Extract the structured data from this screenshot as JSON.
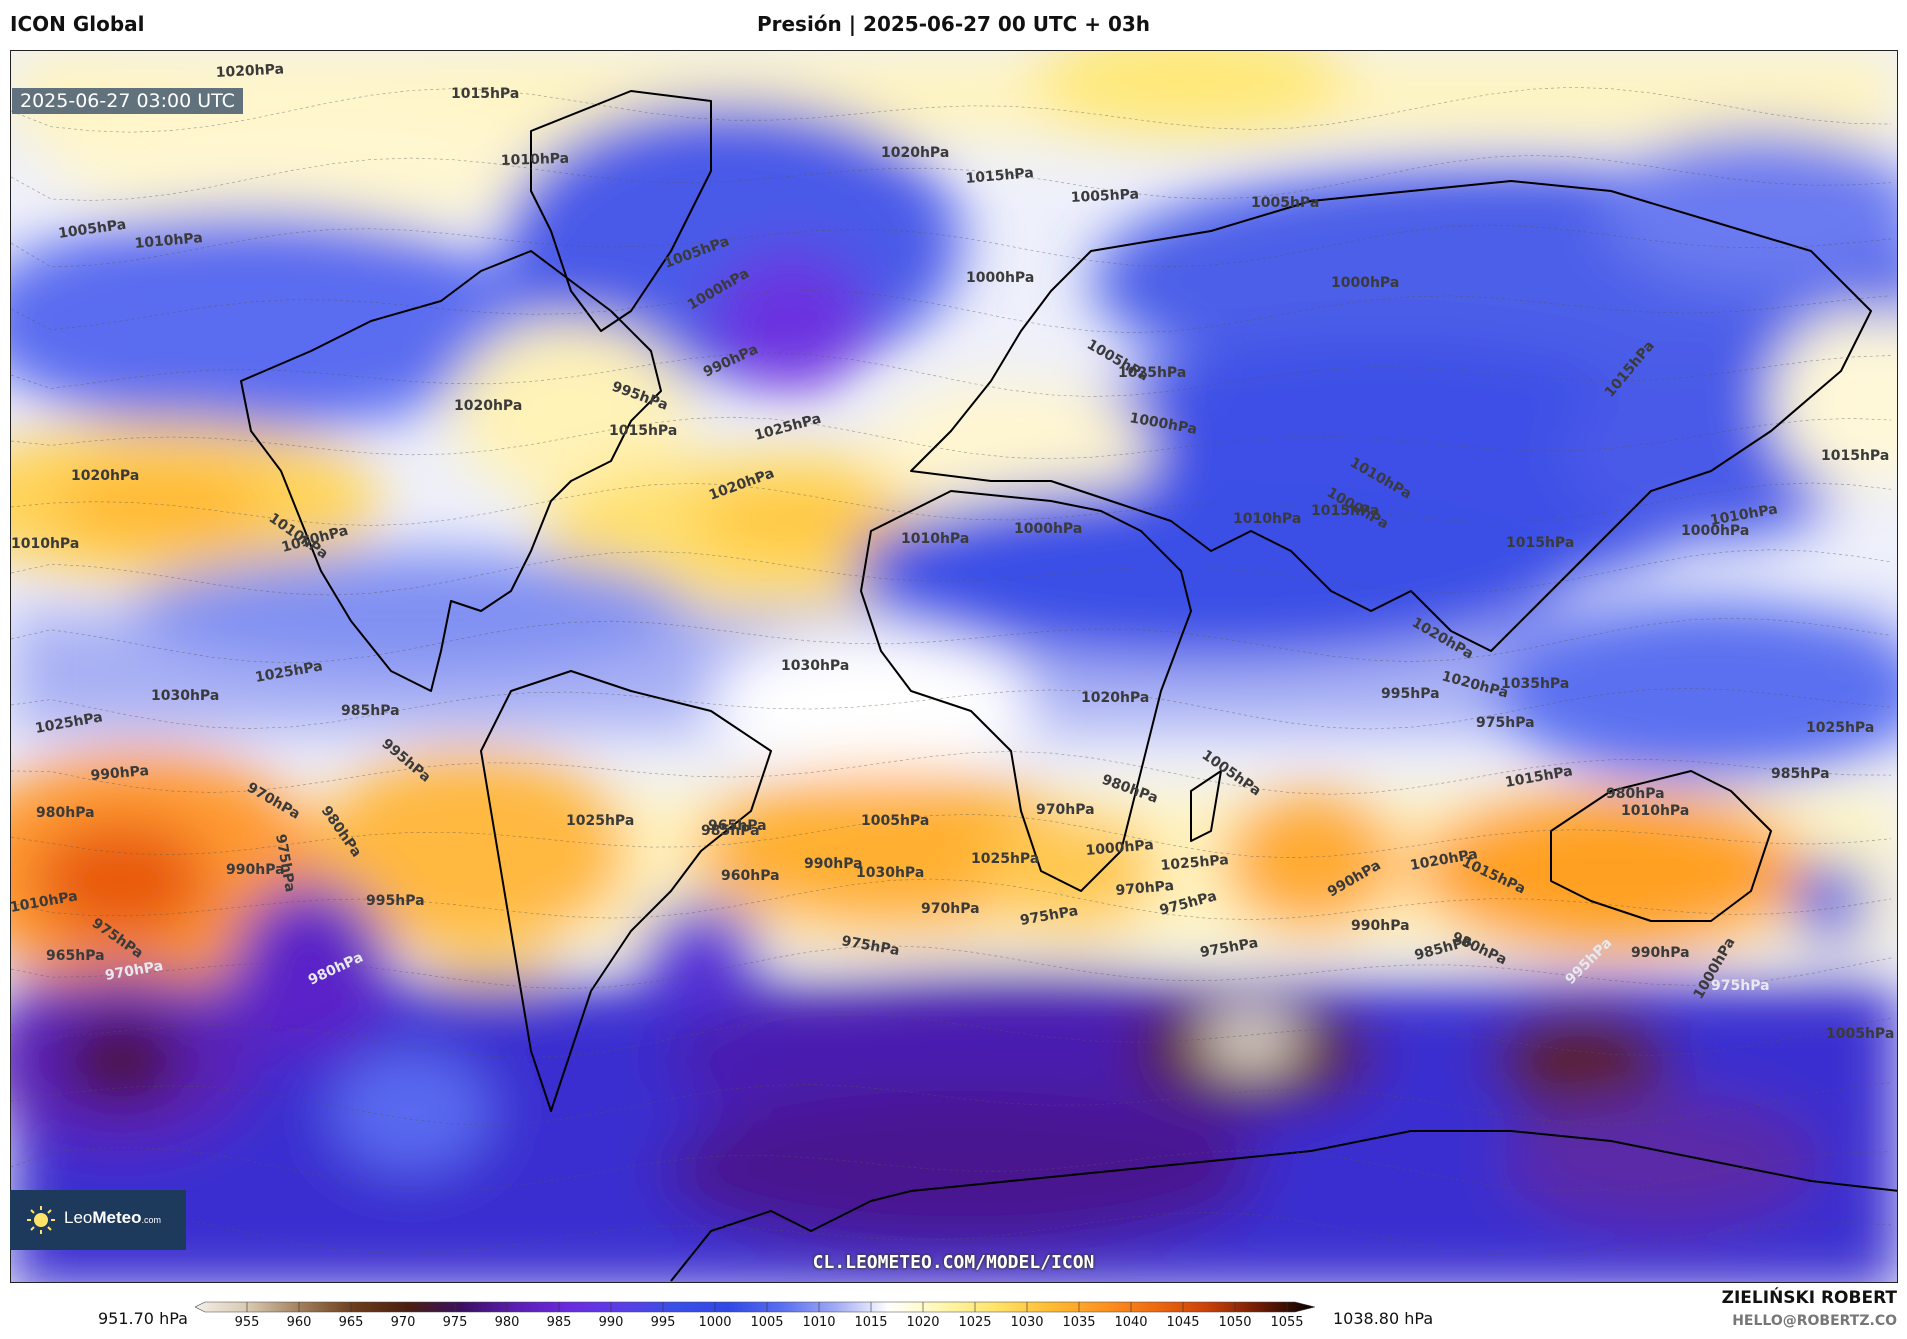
{
  "header": {
    "model": "ICON Global",
    "title": "Presión | 2025-06-27 00 UTC + 03h"
  },
  "map": {
    "timestamp": "2025-06-27 03:00 UTC",
    "watermark": "CL.LEOMETEO.COM/MODEL/ICON",
    "logo_text_light": "Leo",
    "logo_text_bold": "Meteo",
    "logo_suffix": ".com",
    "isobar_labels": [
      "1020hPa",
      "1015hPa",
      "1010hPa",
      "1005hPa",
      "1000hPa",
      "990hPa",
      "995hPa",
      "1005hPa",
      "1010hPa",
      "1020hPa",
      "1015hPa",
      "1005hPa",
      "1005hPa",
      "1000hPa",
      "1000hPa",
      "1015hPa",
      "1005hPa",
      "1025hPa",
      "1020hPa",
      "1015hPa",
      "1010hPa",
      "1020hPa",
      "1025hPa",
      "1020hPa",
      "1010hPa",
      "1015hPa",
      "1000hPa",
      "1010hPa",
      "1000hPa",
      "1015hPa",
      "1010hPa",
      "1000hPa",
      "1010hPa",
      "1010hPa",
      "1010hPa",
      "1015hPa",
      "1020hPa",
      "1020hPa",
      "1030hPa",
      "1035hPa",
      "1025hPa",
      "1030hPa",
      "1025hPa",
      "990hPa",
      "980hPa",
      "985hPa",
      "995hPa",
      "970hPa",
      "980hPa",
      "975hPa",
      "985hPa",
      "1005hPa",
      "1025hPa",
      "990hPa",
      "995hPa",
      "1000hPa",
      "1020hPa",
      "1025hPa",
      "1015hPa",
      "995hPa",
      "975hPa",
      "980hPa",
      "985hPa",
      "1010hPa",
      "1005hPa",
      "980hPa",
      "970hPa",
      "965hPa",
      "960hPa",
      "990hPa",
      "1000hPa",
      "1025hPa",
      "1030hPa",
      "1025hPa",
      "1020hPa",
      "1015hPa",
      "1010hPa",
      "975hPa",
      "965hPa",
      "970hPa",
      "980hPa",
      "970hPa",
      "975hPa",
      "970hPa",
      "975hPa",
      "975hPa",
      "990hPa",
      "990hPa",
      "985hPa",
      "980hPa",
      "990hPa",
      "995hPa",
      "975hPa",
      "1005hPa",
      "1000hPa",
      "975hPa"
    ]
  },
  "legend": {
    "min_label": "951.70 hPa",
    "max_label": "1038.80 hPa",
    "ticks": [
      "955",
      "960",
      "965",
      "970",
      "975",
      "980",
      "985",
      "990",
      "995",
      "1000",
      "1005",
      "1010",
      "1015",
      "1020",
      "1025",
      "1030",
      "1035",
      "1040",
      "1045",
      "1050",
      "1055"
    ],
    "colors": [
      "#f4efe6",
      "#d8c9b2",
      "#a07d5a",
      "#6b3c1c",
      "#4a1e10",
      "#3a1060",
      "#5a1eb0",
      "#6a2ae0",
      "#5a3ee8",
      "#3a4ee8",
      "#3048e6",
      "#5a6ef0",
      "#a0aaf4",
      "#ffffff",
      "#fff7b0",
      "#ffe36a",
      "#ffbe34",
      "#ff9420",
      "#ee6a10",
      "#c84008",
      "#6a1a04",
      "#000000"
    ]
  },
  "footer": {
    "author": "ZIELIŃSKI ROBERT",
    "email": "HELLO@ROBERTZ.CO"
  }
}
